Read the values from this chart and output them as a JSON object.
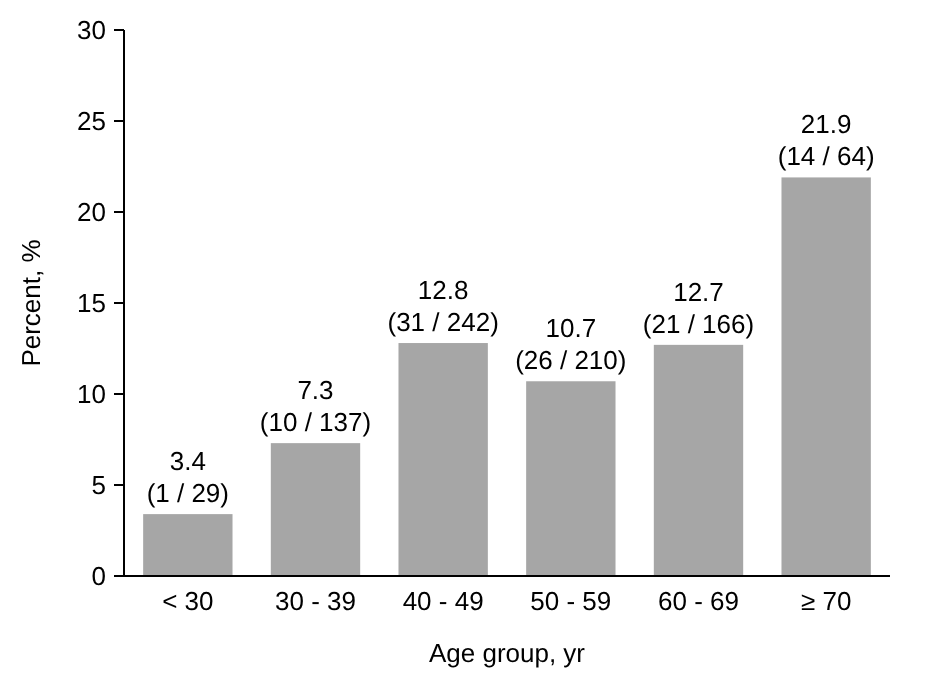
{
  "chart_data": {
    "type": "bar",
    "xlabel": "Age group, yr",
    "ylabel": "Percent, %",
    "categories": [
      "< 30",
      "30 - 39",
      "40 - 49",
      "50 - 59",
      "60 - 69",
      "≥ 70"
    ],
    "values": [
      3.4,
      7.3,
      12.8,
      10.7,
      12.7,
      21.9
    ],
    "value_labels": [
      "3.4\n(1 / 29)",
      "7.3\n(10 / 137)",
      "12.8\n(31 / 242)",
      "10.7\n(26 / 210)",
      "12.7\n(21 / 166)",
      "21.9\n(14 / 64)"
    ],
    "color": "#a6a6a6",
    "ylim": [
      0,
      30
    ],
    "yticks": [
      0,
      5,
      10,
      15,
      20,
      25,
      30
    ],
    "grid": false
  }
}
